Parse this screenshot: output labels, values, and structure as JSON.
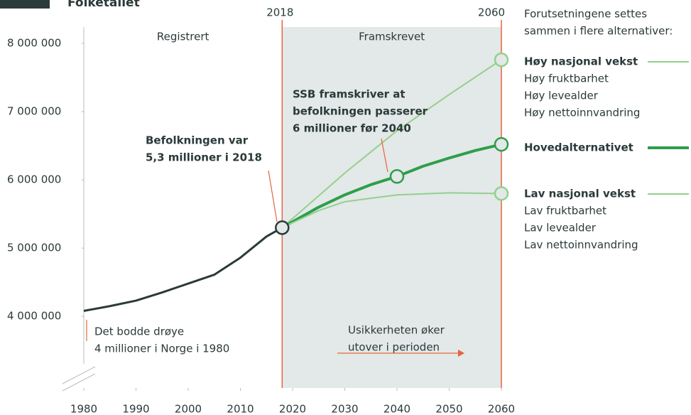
{
  "chart_data": {
    "type": "line",
    "title": "Folketallet",
    "projection_label": "Framskrevet",
    "vlines": [
      2018,
      2060
    ],
    "xlim": [
      1980,
      2060
    ],
    "xticks": [
      1980,
      1990,
      2000,
      2010,
      2020,
      2030,
      2040,
      2050,
      2060
    ],
    "ylim": [
      2950000,
      8240000
    ],
    "yticks": [
      {
        "value": 4000000,
        "label": "4 000 000"
      },
      {
        "value": 5000000,
        "label": "5 000 000"
      },
      {
        "value": 6000000,
        "label": "6 000 000"
      },
      {
        "value": 7000000,
        "label": "7 000 000"
      },
      {
        "value": 8000000,
        "label": "8 000 000"
      }
    ],
    "legend_note": [
      "Forutsetningene settes",
      "sammen i flere alternativer:"
    ],
    "series": [
      {
        "name": "Registrert",
        "color": "#2b3a3a",
        "x": [
          1980,
          1985,
          1990,
          1995,
          2000,
          2005,
          2010,
          2015,
          2018
        ],
        "values": [
          4080000,
          4150000,
          4230000,
          4350000,
          4480000,
          4610000,
          4860000,
          5170000,
          5300000
        ]
      },
      {
        "name": "Høy nasjonal vekst",
        "color": "#93d18c",
        "details": [
          "Høy fruktbarhet",
          "Høy levealder",
          "Høy nettoinnvandring"
        ],
        "x": [
          2018,
          2030,
          2040,
          2050,
          2060
        ],
        "values": [
          5300000,
          6100000,
          6720000,
          7250000,
          7760000
        ]
      },
      {
        "name": "Hovedalternativet",
        "color": "#2e9e4a",
        "details": [],
        "x": [
          2018,
          2025,
          2030,
          2035,
          2040,
          2045,
          2050,
          2055,
          2060
        ],
        "values": [
          5300000,
          5600000,
          5780000,
          5930000,
          6050000,
          6200000,
          6320000,
          6430000,
          6520000
        ]
      },
      {
        "name": "Lav nasjonal vekst",
        "color": "#93d18c",
        "details": [
          "Lav fruktbarhet",
          "Lav levealder",
          "Lav nettoinnvandring"
        ],
        "x": [
          2018,
          2025,
          2030,
          2040,
          2050,
          2060
        ],
        "values": [
          5300000,
          5550000,
          5680000,
          5780000,
          5810000,
          5800000
        ]
      }
    ],
    "annotations": [
      {
        "lines": [
          "Befolkningen var",
          "5,3 millioner i 2018"
        ]
      },
      {
        "lines": [
          "SSB framskriver at",
          "befolkningen passerer",
          "6 millioner før 2040"
        ]
      },
      {
        "lines": [
          "Det bodde drøye",
          "4 millioner i Norge i 1980"
        ]
      },
      {
        "lines": [
          "Usikkerheten øker",
          "utover i perioden"
        ]
      }
    ]
  }
}
